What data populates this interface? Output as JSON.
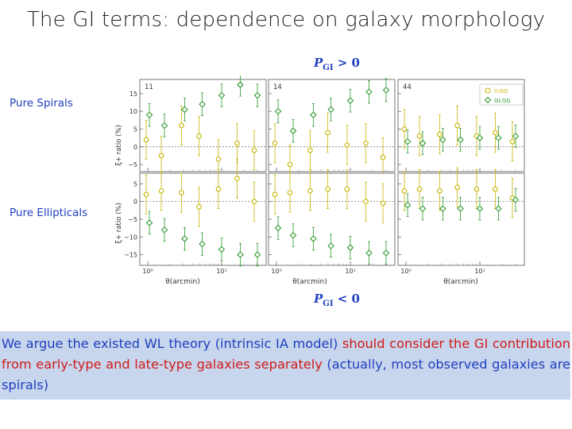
{
  "title": "The GI terms: dependence on galaxy morphology",
  "row_labels": {
    "top": "Pure Spirals",
    "bottom": "Pure Ellipticals"
  },
  "pgi_top": {
    "symbol": "P",
    "sub": "GI",
    "rel": "> 0"
  },
  "pgi_bottom": {
    "symbol": "P",
    "sub": "GI",
    "rel": "< 0"
  },
  "colors": {
    "ii": "#c8b400",
    "gi": "#2e9a2e",
    "label_blue": "#1f3fbf",
    "emphasis_red": "#d11a1a",
    "box": "#c7d6ec"
  },
  "figure": {
    "ylabel_top": "ξ+ ratio (%)",
    "ylabel_bottom": "ξ+ ratio (%)",
    "xlabel": "θ(arcmin)",
    "panel_numbers": [
      "11",
      "14",
      "44"
    ],
    "legend": [
      "II:GG",
      "GI:GG"
    ]
  },
  "chart_data": {
    "type": "scatter",
    "xscale": "log",
    "x": [
      1.0,
      1.6,
      3.0,
      5.2,
      9.5,
      17.0,
      29.0
    ],
    "xlim": [
      0.78,
      40
    ],
    "xticks": [
      {
        "value": 1,
        "label": "10⁰"
      },
      {
        "value": 10,
        "label": "10¹"
      }
    ],
    "xlabel": "θ(arcmin)",
    "ylabel": "ξ+ ratio (%)",
    "rows": [
      {
        "name": "Pure Spirals",
        "ylim": [
          -7,
          19
        ],
        "yticks": [
          -5,
          0,
          5,
          10,
          15
        ],
        "panels": [
          {
            "label": "11",
            "series": [
              {
                "name": "II:GG",
                "values": [
                  2,
                  -2.5,
                  6,
                  3,
                  -3.5,
                  1,
                  -1
                ]
              },
              {
                "name": "GI:GG",
                "values": [
                  9,
                  6,
                  10.5,
                  12,
                  14.5,
                  17.5,
                  14.5
                ]
              }
            ]
          },
          {
            "label": "14",
            "series": [
              {
                "name": "II:GG",
                "values": [
                  1,
                  -5,
                  -1,
                  4,
                  0.5,
                  1,
                  -3
                ]
              },
              {
                "name": "GI:GG",
                "values": [
                  10,
                  4.5,
                  9,
                  10.5,
                  13,
                  15.5,
                  16
                ]
              }
            ]
          },
          {
            "label": "44",
            "series": [
              {
                "name": "II:GG",
                "values": [
                  5,
                  3,
                  3.5,
                  6,
                  3,
                  4,
                  1.5
                ]
              },
              {
                "name": "GI:GG",
                "values": [
                  1.5,
                  1,
                  2,
                  2,
                  2.5,
                  2.5,
                  3
                ]
              }
            ]
          }
        ]
      },
      {
        "name": "Pure Ellipticals",
        "ylim": [
          -18,
          8
        ],
        "yticks": [
          -15,
          -10,
          -5,
          0,
          5
        ],
        "panels": [
          {
            "label": "",
            "series": [
              {
                "name": "II:GG",
                "values": [
                  2,
                  3,
                  2.5,
                  -1.5,
                  3.5,
                  6.5,
                  0
                ]
              },
              {
                "name": "GI:GG",
                "values": [
                  -6,
                  -8,
                  -10.5,
                  -12,
                  -13.5,
                  -15,
                  -15
                ]
              }
            ]
          },
          {
            "label": "",
            "series": [
              {
                "name": "II:GG",
                "values": [
                  2,
                  2.5,
                  3,
                  3.5,
                  3.5,
                  0,
                  -0.5
                ]
              },
              {
                "name": "GI:GG",
                "values": [
                  -7.5,
                  -9.5,
                  -10.5,
                  -12.5,
                  -13,
                  -14.5,
                  -14.5
                ]
              }
            ]
          },
          {
            "label": "",
            "series": [
              {
                "name": "II:GG",
                "values": [
                  3,
                  3.5,
                  3,
                  4,
                  3.5,
                  3.5,
                  1
                ]
              },
              {
                "name": "GI:GG",
                "values": [
                  -1,
                  -2,
                  -2,
                  -2,
                  -2,
                  -2,
                  0.5
                ]
              }
            ]
          }
        ]
      }
    ]
  },
  "bottom_text": {
    "part1": "We argue the existed WL theory (intrinsic IA model) ",
    "part2": "should consider the GI contribution from early-type and late-type galaxies separately",
    "part3": " (actually, most observed galaxies are spirals)"
  }
}
